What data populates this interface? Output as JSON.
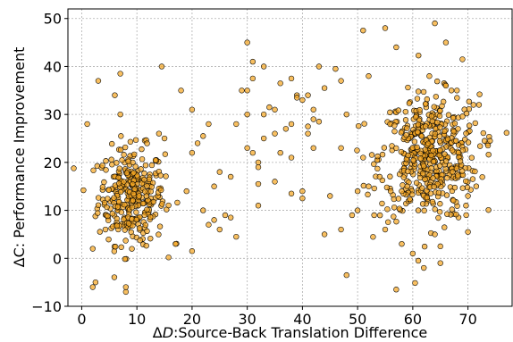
{
  "chart_data": {
    "type": "scatter",
    "xlabel": "ΔD:Source-Back Translation Difference",
    "ylabel": "ΔC: Performance Improvement",
    "xlim": [
      -2.5,
      78
    ],
    "ylim": [
      -10,
      52
    ],
    "xticks": [
      0,
      10,
      20,
      30,
      40,
      50,
      60,
      70
    ],
    "yticks": [
      -10,
      0,
      10,
      20,
      30,
      40,
      50
    ],
    "grid": true,
    "colors": {
      "marker_fill": "#f5a623",
      "marker_edge": "#000000",
      "grid": "#b0b0b0"
    },
    "series": [
      {
        "clusters": [
          {
            "center": [
              9,
              13
            ],
            "spread": [
              3.0,
              5.0
            ],
            "count": 320
          },
          {
            "center": [
              63,
              21
            ],
            "spread": [
              4.5,
              6.5
            ],
            "count": 470
          }
        ],
        "points": [
          [
            1,
            28
          ],
          [
            2,
            2
          ],
          [
            2.5,
            -5
          ],
          [
            2,
            -6
          ],
          [
            3,
            37
          ],
          [
            6,
            34
          ],
          [
            7,
            30
          ],
          [
            7,
            38.5
          ],
          [
            8,
            -7
          ],
          [
            8,
            -6
          ],
          [
            14.5,
            40
          ],
          [
            14,
            26
          ],
          [
            15,
            25
          ],
          [
            17,
            3
          ],
          [
            18,
            35
          ],
          [
            20,
            1.5
          ],
          [
            19,
            14
          ],
          [
            20,
            22
          ],
          [
            20,
            31
          ],
          [
            21,
            24
          ],
          [
            22,
            25.5
          ],
          [
            23,
            28
          ],
          [
            22,
            10
          ],
          [
            23,
            7
          ],
          [
            24,
            8
          ],
          [
            25,
            6
          ],
          [
            24,
            15
          ],
          [
            25,
            18
          ],
          [
            26,
            9
          ],
          [
            27,
            8.5
          ],
          [
            27,
            17
          ],
          [
            28,
            4.5
          ],
          [
            28,
            28
          ],
          [
            29,
            35
          ],
          [
            30,
            35
          ],
          [
            30,
            45
          ],
          [
            31,
            41
          ],
          [
            31,
            37.5
          ],
          [
            30,
            30
          ],
          [
            30,
            23
          ],
          [
            31,
            22
          ],
          [
            32,
            20
          ],
          [
            32,
            19
          ],
          [
            32,
            15.5
          ],
          [
            32,
            11
          ],
          [
            33,
            40
          ],
          [
            33,
            30
          ],
          [
            33,
            25
          ],
          [
            34,
            31.5
          ],
          [
            35,
            31
          ],
          [
            35,
            26
          ],
          [
            35,
            16
          ],
          [
            36,
            36.5
          ],
          [
            36,
            22
          ],
          [
            37,
            27
          ],
          [
            38,
            37.5
          ],
          [
            38,
            28
          ],
          [
            38,
            21
          ],
          [
            38,
            13.5
          ],
          [
            39,
            34
          ],
          [
            39,
            33.5
          ],
          [
            40,
            33
          ],
          [
            40,
            12.5
          ],
          [
            40,
            14
          ],
          [
            41,
            34
          ],
          [
            41,
            27.5
          ],
          [
            41,
            26
          ],
          [
            42,
            31
          ],
          [
            42,
            29
          ],
          [
            42,
            23
          ],
          [
            43,
            40
          ],
          [
            43,
            28.5
          ],
          [
            44,
            35.5
          ],
          [
            44,
            5
          ],
          [
            45,
            13
          ],
          [
            46,
            39.5
          ],
          [
            47,
            37
          ],
          [
            47,
            23
          ],
          [
            47,
            6
          ],
          [
            48,
            -3.5
          ],
          [
            48,
            30
          ],
          [
            49,
            9
          ],
          [
            50,
            14
          ],
          [
            50,
            10
          ],
          [
            51,
            47.5
          ],
          [
            51,
            21
          ],
          [
            52,
            38
          ],
          [
            52,
            15
          ],
          [
            53,
            9
          ],
          [
            54,
            17
          ],
          [
            55,
            48
          ],
          [
            55,
            6
          ],
          [
            56,
            14
          ],
          [
            57,
            -6.5
          ],
          [
            57,
            44
          ],
          [
            58,
            14
          ],
          [
            58,
            3
          ],
          [
            59,
            15
          ],
          [
            60,
            1
          ],
          [
            61,
            -0.5
          ],
          [
            61,
            10
          ],
          [
            62,
            -2
          ],
          [
            63,
            38
          ],
          [
            64,
            5
          ],
          [
            64,
            49
          ],
          [
            65,
            -1
          ],
          [
            65,
            2.5
          ],
          [
            66,
            45
          ],
          [
            66,
            36
          ],
          [
            67,
            35
          ],
          [
            68,
            35
          ],
          [
            69,
            41.5
          ],
          [
            70,
            5.5
          ],
          [
            70,
            13
          ],
          [
            71,
            32
          ],
          [
            72,
            32
          ],
          [
            73,
            24.5
          ],
          [
            74,
            24.5
          ]
        ]
      }
    ]
  }
}
